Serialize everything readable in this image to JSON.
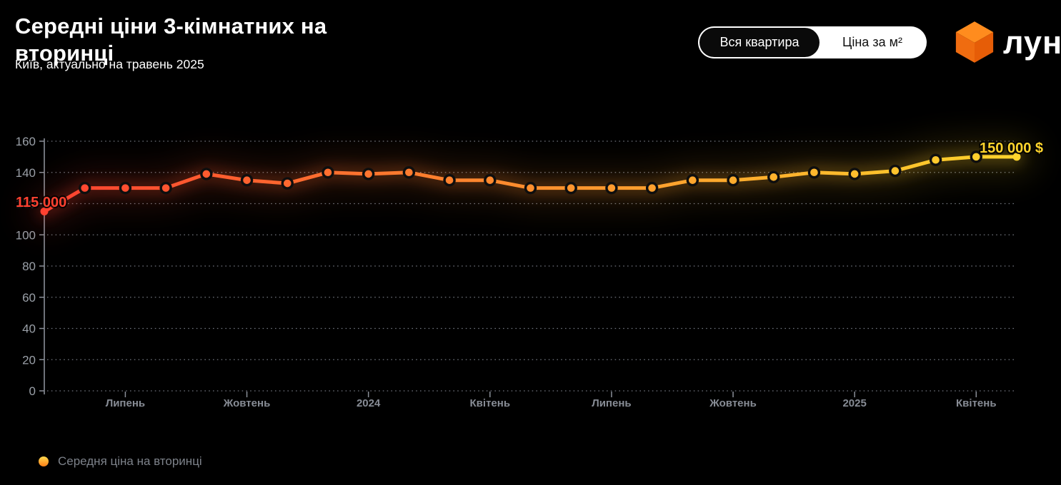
{
  "header": {
    "title": "Середні ціни 3-кімнатних на вторинці",
    "subtitle": "Київ, актуально на травень 2025",
    "toggle": {
      "options": [
        {
          "label": "Вся квартира",
          "selected": true
        },
        {
          "label": "Ціна за м²",
          "selected": false
        }
      ]
    },
    "logo_text": "лун"
  },
  "chart_data": {
    "type": "line",
    "title": "Середні ціни 3-кімнатних на вторинці",
    "series_name": "Середня ціна на вторинці",
    "values_unit": "thousand USD",
    "values": [
      115,
      130,
      130,
      130,
      139,
      135,
      133,
      140,
      139,
      140,
      135,
      135,
      130,
      130,
      130,
      130,
      135,
      135,
      137,
      140,
      139,
      141,
      148,
      150,
      150
    ],
    "x_ticks": [
      {
        "index": 2,
        "label": "Липень"
      },
      {
        "index": 5,
        "label": "Жовтень"
      },
      {
        "index": 8,
        "label": "2024"
      },
      {
        "index": 11,
        "label": "Квітень"
      },
      {
        "index": 14,
        "label": "Липень"
      },
      {
        "index": 17,
        "label": "Жовтень"
      },
      {
        "index": 20,
        "label": "2025"
      },
      {
        "index": 23,
        "label": "Квітень"
      }
    ],
    "ylim": [
      0,
      160
    ],
    "y_ticks": [
      0,
      20,
      40,
      60,
      80,
      100,
      120,
      140,
      160
    ],
    "grid": "dotted-horizontal",
    "legend_position": "bottom-left",
    "first_point_label": "115 000",
    "last_point_label": "150 000 $",
    "line_gradient": [
      "#ff4130",
      "#ff8f2e",
      "#ffd42c"
    ],
    "point_ring_color": "#0e0e0e",
    "axis_color": "#8a8f98",
    "tick_label_color": "#9aa0a8",
    "x_label_color": "#878c95"
  },
  "legend": {
    "label": "Середня ціна на вторинці"
  }
}
